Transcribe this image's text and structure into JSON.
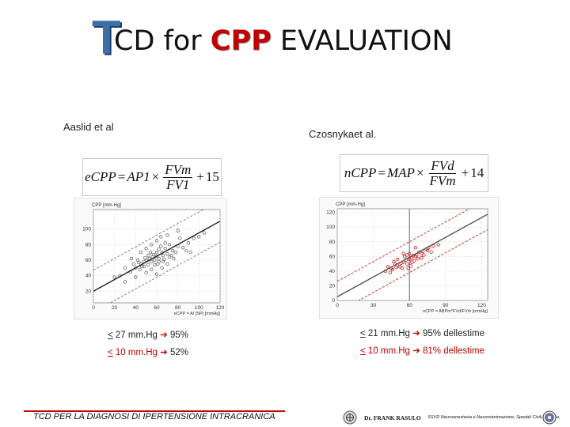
{
  "title": {
    "initial": "T",
    "part1": "CD for ",
    "highlight": "CPP",
    "part2": " EVALUATION"
  },
  "left": {
    "author": "Aaslid et al",
    "formula": {
      "lhs": "eCPP",
      "eq": "=",
      "ap": "AP1",
      "times": "×",
      "num": "FVm",
      "den": "FV1",
      "plus": "+",
      "const": "15"
    },
    "stats": [
      {
        "le": "<",
        "text": " 27 mm.Hg ",
        "arrow": "➔",
        "result": " 95%"
      },
      {
        "le": "<",
        "text": " 10 mm.Hg ",
        "arrow": "➔",
        "result": " 52%"
      }
    ]
  },
  "right": {
    "author": "Czosnykaet al.",
    "formula": {
      "lhs": "nCPP",
      "eq": "=",
      "ap": "MAP",
      "times": "×",
      "num": "FVd",
      "den": "FVm",
      "plus": "+",
      "const": "14"
    },
    "stats": [
      {
        "le": "<",
        "text": " 21 mm.Hg ",
        "arrow": "➔",
        "result": " 95% dellestime"
      },
      {
        "le": "<",
        "text": " 10 mm.Hg ",
        "arrow": "➔",
        "result": " 81% dellestime"
      }
    ]
  },
  "chart_data": [
    {
      "type": "scatter",
      "ylabel": "CPP [mm-Hg]",
      "xlabel": "eCPP = A/ [SP]  [mmHg]",
      "xticks": [
        0,
        20,
        40,
        60,
        80,
        100,
        120
      ],
      "yticks": [
        20,
        40,
        60,
        80,
        100
      ],
      "xlim": [
        0,
        120
      ],
      "ylim": [
        5,
        125
      ],
      "grid": true,
      "regression": {
        "slope": 0.75,
        "intercept": 20
      },
      "band_offset": 27,
      "colors": {
        "points": "#555555",
        "line": "#222222",
        "band": "#666666"
      },
      "points": [
        [
          40,
          50
        ],
        [
          45,
          55
        ],
        [
          50,
          60
        ],
        [
          55,
          58
        ],
        [
          60,
          65
        ],
        [
          65,
          70
        ],
        [
          70,
          68
        ],
        [
          75,
          72
        ],
        [
          80,
          78
        ],
        [
          35,
          45
        ],
        [
          42,
          60
        ],
        [
          48,
          52
        ],
        [
          52,
          66
        ],
        [
          58,
          54
        ],
        [
          62,
          62
        ],
        [
          66,
          58
        ],
        [
          68,
          75
        ],
        [
          72,
          64
        ],
        [
          78,
          70
        ],
        [
          85,
          76
        ],
        [
          90,
          82
        ],
        [
          95,
          88
        ],
        [
          30,
          50
        ],
        [
          25,
          40
        ],
        [
          20,
          38
        ],
        [
          55,
          48
        ],
        [
          60,
          42
        ],
        [
          65,
          50
        ],
        [
          70,
          55
        ],
        [
          45,
          70
        ],
        [
          50,
          75
        ],
        [
          55,
          80
        ],
        [
          60,
          85
        ],
        [
          64,
          90
        ],
        [
          70,
          92
        ],
        [
          80,
          98
        ],
        [
          58,
          60
        ],
        [
          62,
          58
        ],
        [
          56,
          64
        ],
        [
          48,
          58
        ],
        [
          52,
          54
        ],
        [
          66,
          66
        ],
        [
          74,
          66
        ],
        [
          76,
          62
        ],
        [
          44,
          48
        ],
        [
          38,
          55
        ],
        [
          36,
          62
        ],
        [
          100,
          90
        ],
        [
          105,
          95
        ],
        [
          40,
          38
        ],
        [
          30,
          32
        ],
        [
          50,
          44
        ],
        [
          46,
          52
        ],
        [
          54,
          70
        ],
        [
          68,
          82
        ],
        [
          72,
          80
        ],
        [
          82,
          88
        ],
        [
          88,
          72
        ],
        [
          92,
          70
        ],
        [
          60,
          70
        ],
        [
          62,
          74
        ],
        [
          64,
          78
        ],
        [
          57,
          67
        ],
        [
          53,
          62
        ],
        [
          49,
          63
        ],
        [
          61,
          55
        ],
        [
          67,
          61
        ],
        [
          43,
          57
        ]
      ]
    },
    {
      "type": "scatter",
      "ylabel": "CPP [mm-Hg]",
      "xlabel": "nCPP = ABPm*FVd/FVm  [mmHg]",
      "xticks": [
        0,
        30,
        60,
        90,
        120
      ],
      "yticks": [
        0,
        20,
        40,
        60,
        80,
        100,
        120
      ],
      "xlim": [
        0,
        125
      ],
      "ylim": [
        0,
        125
      ],
      "vline": 60,
      "grid": true,
      "regression": {
        "slope": 0.9,
        "intercept": 5
      },
      "band_offset": 21,
      "colors": {
        "points": "#c00000",
        "line": "#555555",
        "band": "#c00000",
        "vline": "#3a6fb0"
      },
      "points": [
        [
          40,
          40
        ],
        [
          45,
          44
        ],
        [
          50,
          48
        ],
        [
          55,
          52
        ],
        [
          60,
          56
        ],
        [
          65,
          60
        ],
        [
          70,
          64
        ],
        [
          75,
          68
        ],
        [
          58,
          50
        ],
        [
          62,
          58
        ],
        [
          66,
          62
        ],
        [
          52,
          46
        ],
        [
          48,
          50
        ],
        [
          44,
          38
        ],
        [
          56,
          60
        ],
        [
          64,
          54
        ],
        [
          68,
          66
        ],
        [
          72,
          62
        ],
        [
          76,
          72
        ],
        [
          80,
          74
        ],
        [
          84,
          76
        ],
        [
          60,
          64
        ],
        [
          62,
          52
        ],
        [
          54,
          44
        ],
        [
          50,
          56
        ],
        [
          46,
          42
        ],
        [
          42,
          46
        ],
        [
          70,
          58
        ],
        [
          74,
          70
        ],
        [
          78,
          66
        ],
        [
          58,
          62
        ],
        [
          61,
          47
        ],
        [
          63,
          61
        ],
        [
          57,
          55
        ],
        [
          53,
          51
        ],
        [
          67,
          57
        ],
        [
          71,
          67
        ],
        [
          59,
          44
        ],
        [
          65,
          72
        ],
        [
          55,
          64
        ],
        [
          49,
          45
        ],
        [
          47,
          53
        ]
      ]
    }
  ],
  "footer": {
    "left": "TCD PER LA DIAGNOSI DI IPERTENSIONE INTRACRANICA",
    "name": "Dr. FRANK RASULO",
    "dept": "SSVD Neuroanestesia e Neurorianimazione, Spedali Civili, Brescia,"
  }
}
